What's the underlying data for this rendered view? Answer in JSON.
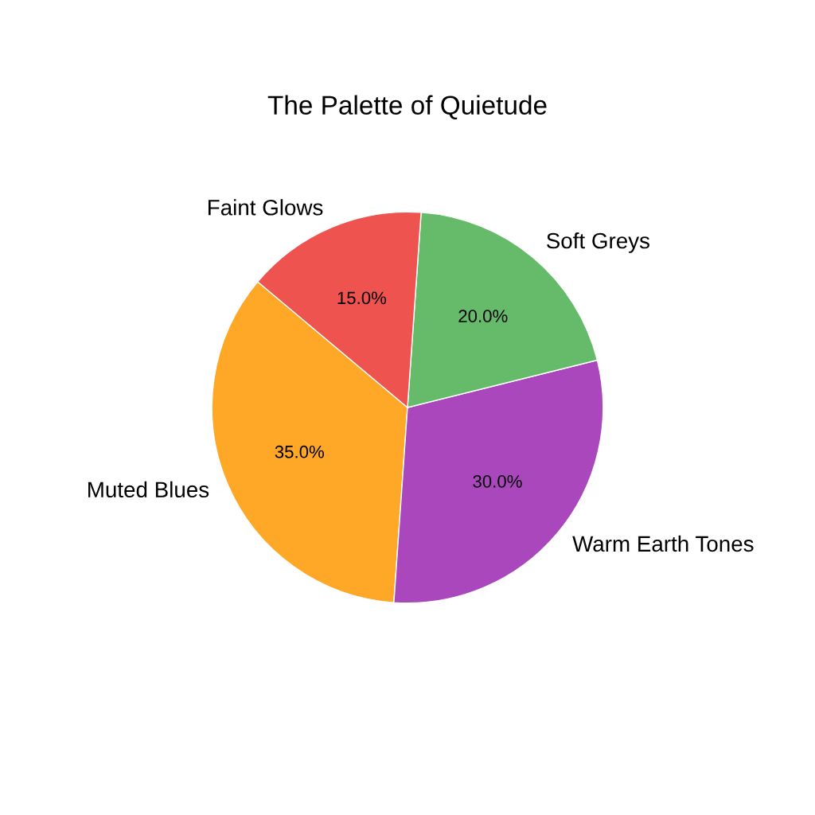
{
  "chart_data": {
    "type": "pie",
    "title": "The Palette of Quietude",
    "categories": [
      "Muted Blues",
      "Warm Earth Tones",
      "Soft Greys",
      "Faint Glows"
    ],
    "values": [
      35,
      30,
      20,
      15
    ],
    "value_labels": [
      "35.0%",
      "30.0%",
      "20.0%",
      "15.0%"
    ],
    "colors": [
      "#ffa726",
      "#ab47bc",
      "#66bb6a",
      "#ef5350"
    ],
    "legend": false
  }
}
